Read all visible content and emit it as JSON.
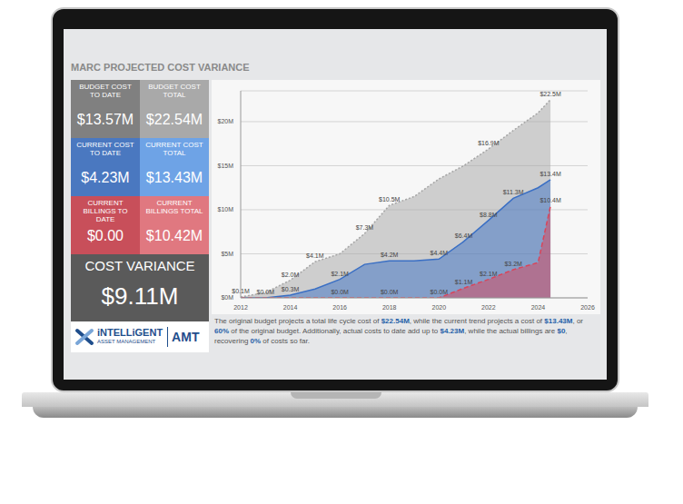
{
  "chart_data": {
    "type": "area",
    "title": "MARC PROJECTED COST VARIANCE",
    "x": [
      2012,
      2013,
      2014,
      2015,
      2016,
      2017,
      2018,
      2019,
      2020,
      2021,
      2022,
      2023,
      2024,
      2024.5
    ],
    "xlim": [
      2012,
      2026
    ],
    "xticks": [
      2012,
      2014,
      2016,
      2018,
      2020,
      2022,
      2024,
      2026
    ],
    "ylim": [
      0,
      23.5
    ],
    "yticks": [
      {
        "value": 0,
        "label": "$0M"
      },
      {
        "value": 5,
        "label": "$5M"
      },
      {
        "value": 10,
        "label": "$10M"
      },
      {
        "value": 15,
        "label": "$15M"
      },
      {
        "value": 20,
        "label": "$20M"
      }
    ],
    "grid": true,
    "data_labels": true,
    "series": [
      {
        "color": "#a6a6a6",
        "line_style": "dotted",
        "values": [
          0.1,
          0.6,
          2.0,
          4.1,
          5.0,
          7.3,
          10.5,
          11.5,
          13.5,
          15.0,
          16.9,
          19.0,
          21.0,
          22.5
        ],
        "value_labels": [
          "$0.1M",
          null,
          "$2.0M",
          "$4.1M",
          null,
          "$7.3M",
          "$10.5M",
          null,
          null,
          null,
          "$16.9M",
          null,
          null,
          "$22.5M"
        ]
      },
      {
        "color": "#3a6fc4",
        "line_style": "solid",
        "values": [
          0,
          0,
          0.3,
          1.0,
          2.1,
          3.8,
          4.2,
          4.2,
          4.4,
          6.4,
          8.8,
          11.3,
          12.5,
          13.4
        ],
        "value_labels": [
          null,
          "$0.0M",
          "$0.3M",
          null,
          "$2.1M",
          null,
          "$4.2M",
          null,
          "$4.4M",
          "$6.4M",
          "$8.8M",
          "$11.3M",
          null,
          "$13.4M"
        ]
      },
      {
        "color": "#d9455a",
        "line_style": "dashed",
        "values": [
          0,
          0,
          0,
          0,
          0,
          0,
          0,
          0,
          0,
          1.1,
          2.1,
          3.2,
          4.0,
          10.4
        ],
        "value_labels": [
          null,
          null,
          null,
          null,
          "$0.0M",
          null,
          "$0.0M",
          null,
          "$0.0M",
          "$1.1M",
          "$2.1M",
          "$3.2M",
          null,
          "$10.4M"
        ]
      }
    ]
  },
  "tiles": [
    [
      {
        "label": "BUDGET COST TO DATE",
        "value": "$13.57M",
        "color": "#808080"
      },
      {
        "label": "BUDGET COST TOTAL",
        "value": "$22.54M",
        "color": "#a9a9a9"
      }
    ],
    [
      {
        "label": "CURRENT COST TO DATE",
        "value": "$4.23M",
        "color": "#4a78c0"
      },
      {
        "label": "CURRENT COST TOTAL",
        "value": "$13.43M",
        "color": "#6ea3e6"
      }
    ],
    [
      {
        "label": "CURRENT BILLINGS TO DATE",
        "value": "$0.00",
        "color": "#c84f5a"
      },
      {
        "label": "CURRENT BILLINGS TOTAL",
        "value": "$10.42M",
        "color": "#e07880"
      }
    ]
  ],
  "variance": {
    "label": "COST VARIANCE",
    "value": "$9.11M",
    "color": "#5a5a5a"
  },
  "logo": {
    "name": "iNTELLiGENT",
    "subtitle": "ASSET MANAGEMENT",
    "badge": "AMT"
  },
  "caption": [
    "The original budget projects a total life cycle cost of ",
    "$22.54M",
    ", while the current trend projects a cost of ",
    "$13.43M",
    ", or ",
    "60%",
    " of the original budget. Additionally, actual costs to date add up to ",
    "$4.23M",
    ", while the actual billings are ",
    "$0",
    ", recovering ",
    "0%",
    " of costs so far."
  ]
}
